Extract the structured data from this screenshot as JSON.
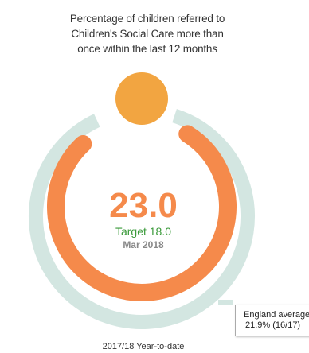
{
  "title_lines": [
    "Percentage of children referred to",
    "Children's Social Care more than",
    "once within the last 12 months"
  ],
  "value_text": "23.0",
  "target_text": "Target  18.0",
  "period": "Mar 2018",
  "england_label": "England average",
  "england_value": "21.9% (16/17)",
  "footer": "2017/18 Year-to-date",
  "colors": {
    "actual": "#f58a4b",
    "england": "#d3e6e1",
    "target_dot": "#f2a541",
    "target_text": "#3a9a3a"
  },
  "chart_data": {
    "type": "gauge",
    "value": 23.0,
    "target": 18.0,
    "england_average": 21.9,
    "period": "Mar 2018",
    "footer": "2017/18 Year-to-date"
  }
}
